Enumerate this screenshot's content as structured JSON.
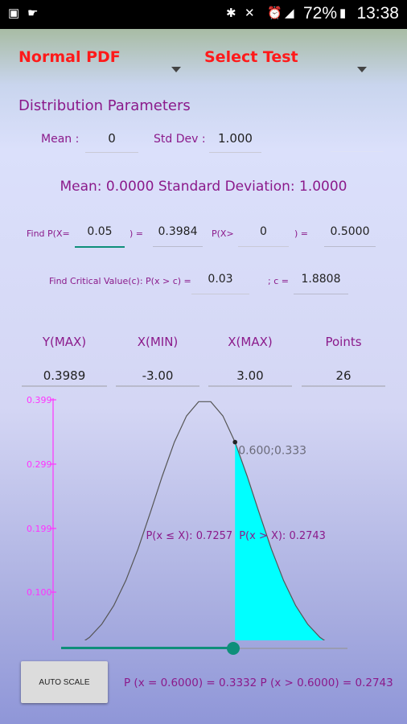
{
  "statusbar": {
    "battery_pct": "72%",
    "time": "13:38"
  },
  "dropdowns": {
    "distribution": "Normal PDF",
    "test": "Select Test"
  },
  "params": {
    "heading": "Distribution Parameters",
    "mean_label": "Mean :",
    "mean_value": "0",
    "sd_label": "Std Dev :",
    "sd_value": "1.000",
    "summary": "Mean: 0.0000 Standard Deviation: 1.0000"
  },
  "findp": {
    "eq_label": "Find P(X=",
    "eq_value": "0.05",
    "eq_close": ") =",
    "eq_result": "0.3984",
    "gt_label": "P(X>",
    "gt_value": "0",
    "gt_close": ") =",
    "gt_result": "0.5000"
  },
  "critical": {
    "label": "Find Critical Value(c): P(x > c) =",
    "value": "0.03",
    "c_label": "; c =",
    "c_result": "1.8808"
  },
  "ranges": {
    "headers": [
      "Y(MAX)",
      "X(MIN)",
      "X(MAX)",
      "Points"
    ],
    "values": [
      "0.3989",
      "-3.00",
      "3.00",
      "26"
    ]
  },
  "chart_data": {
    "type": "area",
    "x_range": [
      -3.0,
      3.0
    ],
    "y_range": [
      0,
      0.399
    ],
    "ytick_labels": [
      "0.399",
      "0.299",
      "0.199",
      "0.100"
    ],
    "ytick_values": [
      0.399,
      0.299,
      0.199,
      0.1
    ],
    "mean": 0,
    "sd": 1,
    "points": 26,
    "marker_x": 0.6,
    "marker_label": "0.600;0.333",
    "shaded_from_x": 0.6,
    "shade_color": "#00ffff",
    "curve_color": "#555555",
    "axis_color": "#ff33ff",
    "left_annotation": "P(x ≤ X): 0.7257",
    "right_annotation": "P(x > X): 0.2743"
  },
  "slider": {
    "value": 0.6,
    "min": -3.0,
    "max": 3.0
  },
  "footer": {
    "button_label": "AUTO SCALE",
    "result_text": "P (x = 0.6000) = 0.3332 P (x > 0.6000) = 0.2743"
  },
  "colors": {
    "accent": "#0e8f7a",
    "title_red": "#ff1a1a",
    "label_purple": "#8b1a8b"
  }
}
